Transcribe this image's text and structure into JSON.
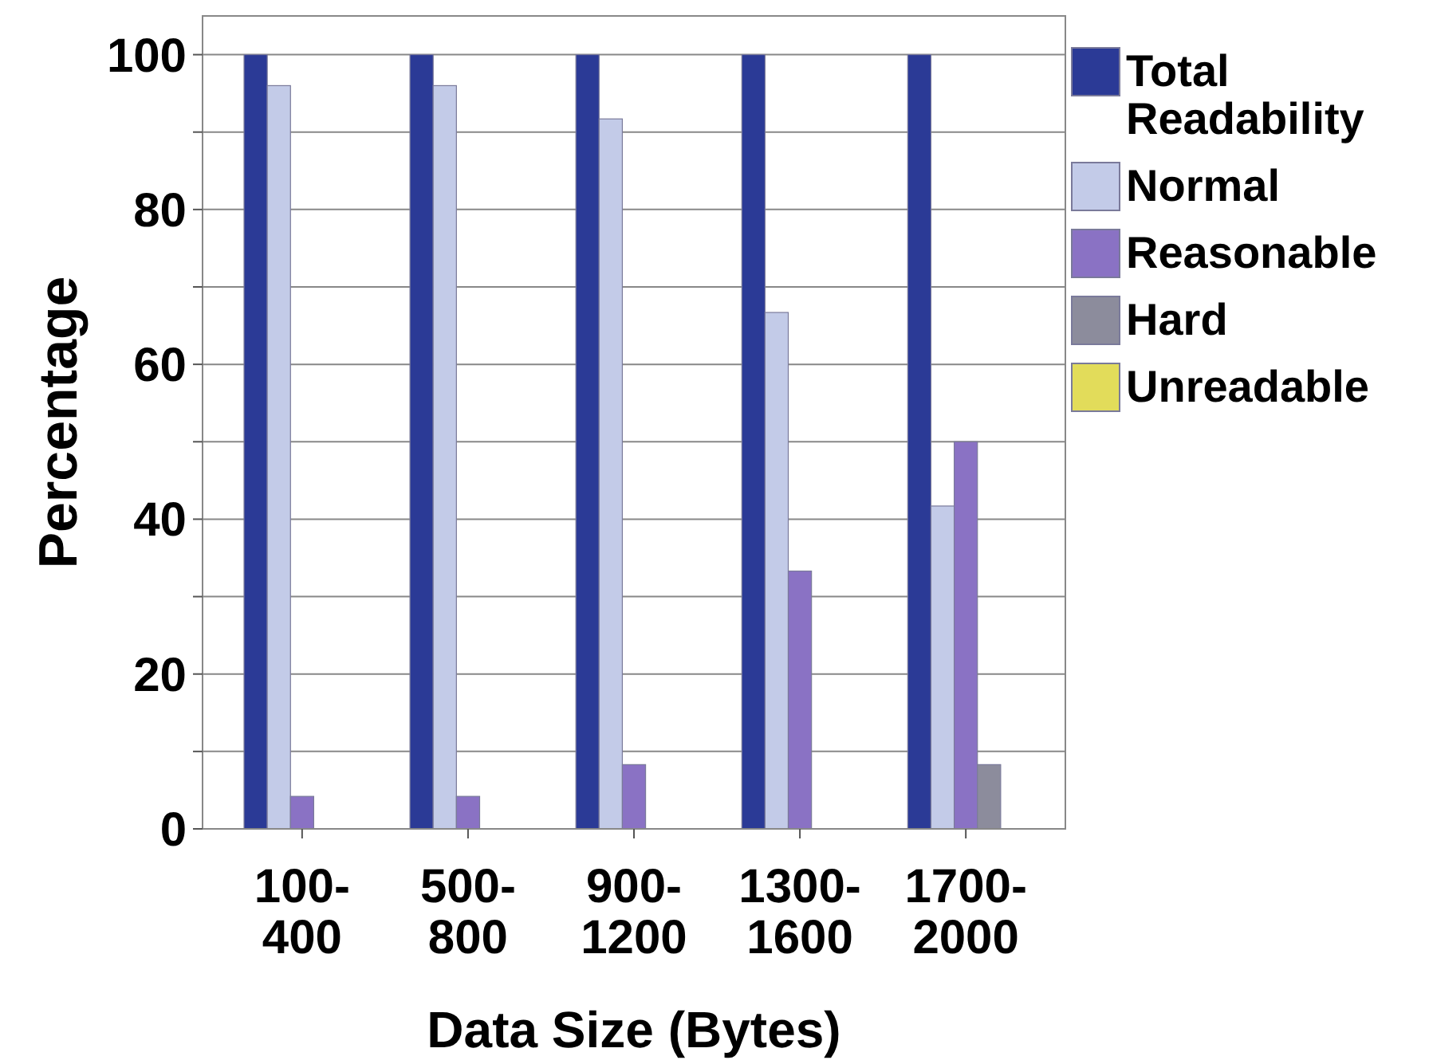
{
  "chart_data": {
    "type": "bar",
    "xlabel": "Data Size (Bytes)",
    "ylabel": "Percentage",
    "categories": [
      "100-400",
      "500-800",
      "900-1200",
      "1300-1600",
      "1700-2000"
    ],
    "series": [
      {
        "name": "Total Readability",
        "color": "#2b3a96",
        "values": [
          100,
          100,
          100,
          100,
          100
        ]
      },
      {
        "name": "Normal",
        "color": "#c3cbe8",
        "values": [
          96,
          96,
          91.7,
          66.7,
          41.7
        ]
      },
      {
        "name": "Reasonable",
        "color": "#8a72c4",
        "values": [
          4.2,
          4.2,
          8.3,
          33.3,
          50
        ]
      },
      {
        "name": "Hard",
        "color": "#8c8c9c",
        "values": [
          0,
          0,
          0,
          0,
          8.3
        ]
      },
      {
        "name": "Unreadable",
        "color": "#e2dc5a",
        "values": [
          0,
          0,
          0,
          0,
          0
        ]
      }
    ],
    "ylim": [
      0,
      105
    ],
    "yticks": [
      0,
      {
        "value": 10,
        "label": null
      },
      20,
      {
        "value": 30,
        "label": null
      },
      40,
      {
        "value": 50,
        "label": null
      },
      60,
      {
        "value": 70,
        "label": null
      },
      80,
      {
        "value": 90,
        "label": null
      },
      100
    ],
    "grid": "y",
    "legend": "right"
  }
}
